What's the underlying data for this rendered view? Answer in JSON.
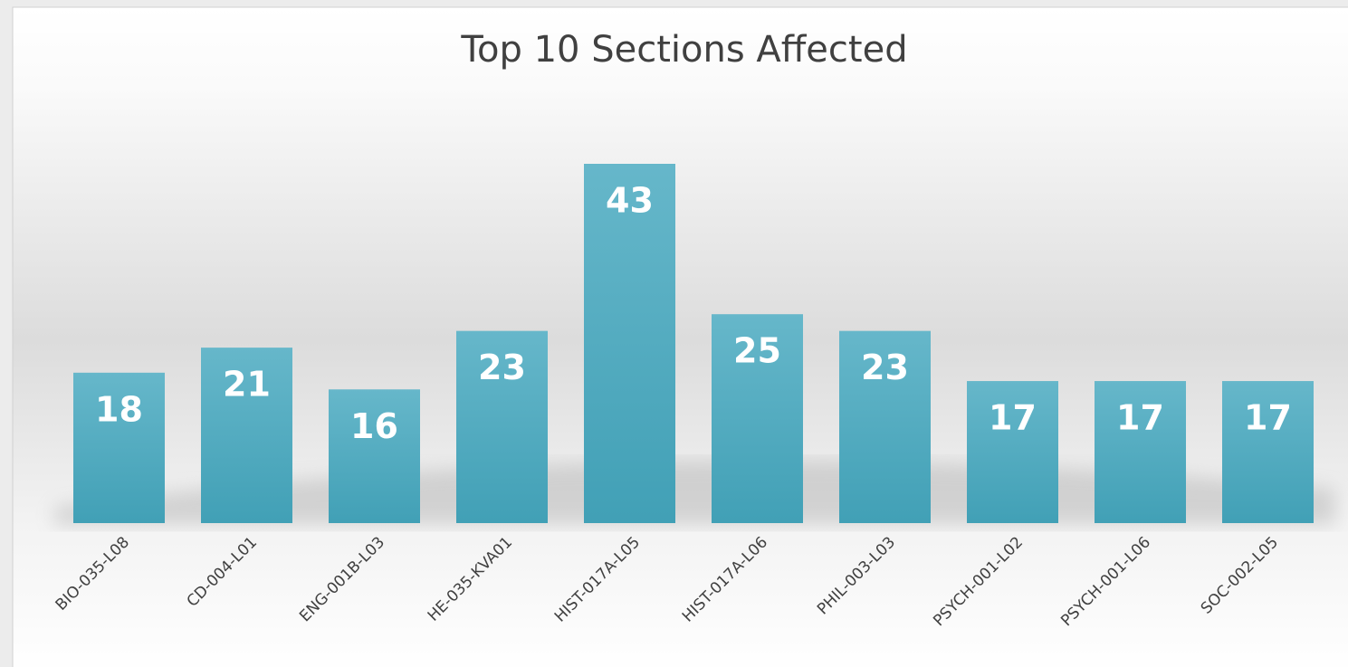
{
  "chart_data": {
    "type": "bar",
    "title": "Top 10 Sections Affected",
    "categories": [
      "BIO-035-L08",
      "CD-004-L01",
      "ENG-001B-L03",
      "HE-035-KVA01",
      "HIST-017A-L05",
      "HIST-017A-L06",
      "PHIL-003-L03",
      "PSYCH-001-L02",
      "PSYCH-001-L06",
      "SOC-002-L05"
    ],
    "values": [
      18,
      21,
      16,
      23,
      43,
      25,
      23,
      17,
      17,
      17
    ],
    "color": "#4ea9be"
  }
}
